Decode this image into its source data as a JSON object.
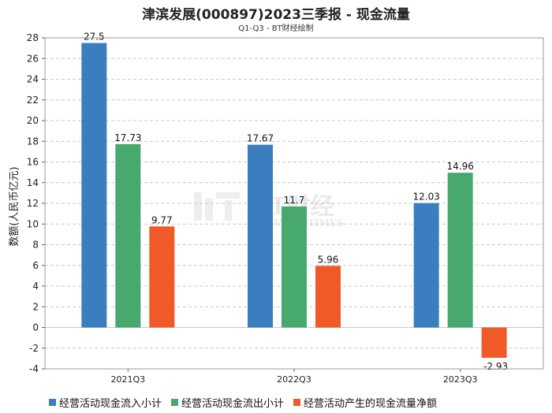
{
  "title": "津滨发展(000897)2023三季报 - 现金流量",
  "subtitle": "Q1-Q3 - BT财经绘制",
  "watermark": {
    "main": "BT财经",
    "sub": "BUSINESSTIMES"
  },
  "colors": {
    "series": [
      "#3a7ebf",
      "#47a96e",
      "#f05a28"
    ],
    "grid": "#c8c8c8",
    "axis": "#666666"
  },
  "chart_data": {
    "type": "bar",
    "title": "津滨发展(000897)2023三季报 - 现金流量",
    "subtitle": "Q1-Q3 - BT财经绘制",
    "xlabel": "",
    "ylabel": "数额(人民币亿元)",
    "ylim": [
      -4,
      28
    ],
    "yticks": [
      -4,
      -2,
      0,
      2,
      4,
      6,
      8,
      10,
      12,
      14,
      16,
      18,
      20,
      22,
      24,
      26,
      28
    ],
    "grid": true,
    "legend_position": "bottom",
    "categories": [
      "2021Q3",
      "2022Q3",
      "2023Q3"
    ],
    "series": [
      {
        "name": "经营活动现金流入小计",
        "values": [
          27.5,
          17.67,
          12.03
        ],
        "labels": [
          "27.5",
          "17.67",
          "12.03"
        ]
      },
      {
        "name": "经营活动现金流出小计",
        "values": [
          17.73,
          11.7,
          14.96
        ],
        "labels": [
          "17.73",
          "11.7",
          "14.96"
        ]
      },
      {
        "name": "经营活动产生的现金流量净额",
        "values": [
          9.77,
          5.96,
          -2.93
        ],
        "labels": [
          "9.77",
          "5.96",
          "-2.93"
        ]
      }
    ]
  }
}
